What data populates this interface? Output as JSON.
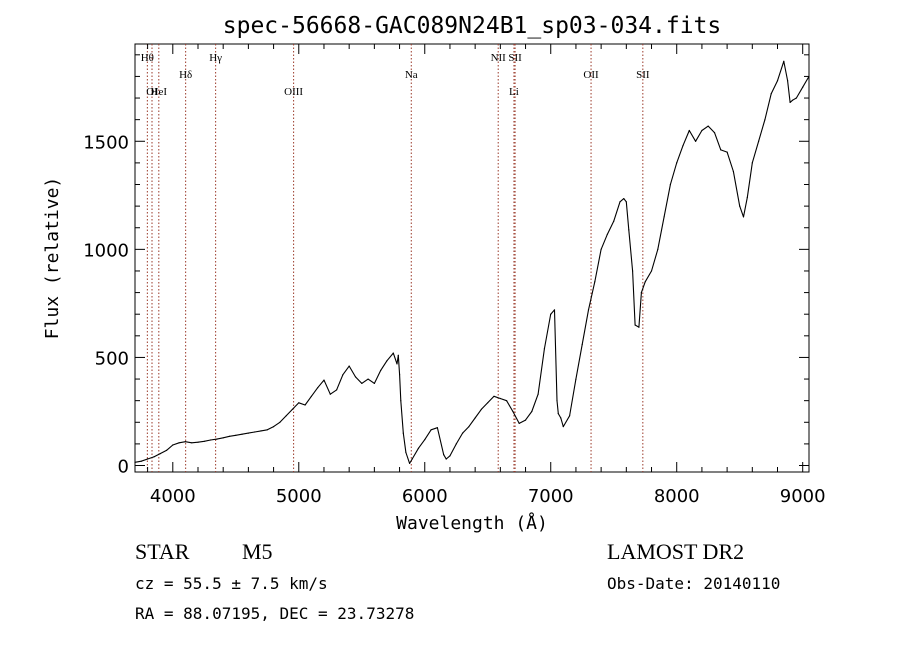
{
  "chart_data": {
    "type": "line",
    "title": "spec-56668-GAC089N24B1_sp03-034.fits",
    "xlabel": "Wavelength (Å)",
    "ylabel": "Flux (relative)",
    "xlim": [
      3700,
      9050
    ],
    "ylim": [
      -30,
      1950
    ],
    "xticks": [
      4000,
      5000,
      6000,
      7000,
      8000,
      9000
    ],
    "yticks": [
      0,
      500,
      1000,
      1500
    ],
    "grid": false,
    "series": [
      {
        "color": "#000000",
        "x": [
          3700,
          3750,
          3800,
          3850,
          3900,
          3950,
          4000,
          4050,
          4100,
          4150,
          4200,
          4250,
          4300,
          4350,
          4400,
          4450,
          4500,
          4550,
          4600,
          4650,
          4700,
          4750,
          4800,
          4850,
          4900,
          4950,
          5000,
          5050,
          5100,
          5150,
          5200,
          5250,
          5300,
          5350,
          5400,
          5450,
          5500,
          5550,
          5600,
          5650,
          5700,
          5750,
          5780,
          5790,
          5800,
          5810,
          5830,
          5850,
          5880,
          5900,
          5950,
          6000,
          6050,
          6100,
          6150,
          6170,
          6200,
          6250,
          6300,
          6350,
          6400,
          6450,
          6500,
          6550,
          6600,
          6650,
          6700,
          6750,
          6800,
          6850,
          6900,
          6950,
          7000,
          7030,
          7050,
          7060,
          7080,
          7100,
          7150,
          7200,
          7250,
          7300,
          7350,
          7400,
          7450,
          7500,
          7550,
          7580,
          7600,
          7620,
          7650,
          7670,
          7700,
          7720,
          7750,
          7800,
          7850,
          7900,
          7950,
          8000,
          8050,
          8100,
          8150,
          8200,
          8250,
          8300,
          8350,
          8400,
          8450,
          8500,
          8530,
          8560,
          8600,
          8650,
          8700,
          8750,
          8800,
          8850,
          8880,
          8900,
          8920,
          8950,
          9000,
          9050
        ],
        "values": [
          15,
          20,
          30,
          40,
          55,
          70,
          95,
          105,
          110,
          105,
          108,
          112,
          118,
          122,
          128,
          135,
          140,
          145,
          150,
          155,
          160,
          165,
          180,
          200,
          230,
          260,
          290,
          280,
          320,
          360,
          395,
          330,
          350,
          420,
          460,
          410,
          380,
          400,
          380,
          440,
          485,
          520,
          470,
          510,
          420,
          300,
          150,
          60,
          10,
          30,
          80,
          120,
          165,
          175,
          50,
          30,
          45,
          100,
          150,
          180,
          220,
          260,
          290,
          320,
          310,
          300,
          250,
          195,
          210,
          250,
          330,
          540,
          700,
          720,
          300,
          240,
          220,
          180,
          230,
          400,
          560,
          720,
          850,
          1000,
          1070,
          1130,
          1220,
          1235,
          1220,
          1090,
          900,
          650,
          640,
          800,
          850,
          900,
          1000,
          1150,
          1300,
          1400,
          1480,
          1550,
          1500,
          1550,
          1570,
          1540,
          1460,
          1450,
          1360,
          1200,
          1150,
          1240,
          1400,
          1500,
          1600,
          1720,
          1780,
          1870,
          1780,
          1680,
          1690,
          1700,
          1750,
          1800
        ]
      }
    ],
    "line_markers": [
      {
        "label": "Hθ",
        "x": 3798,
        "row": 0
      },
      {
        "label": "OI",
        "x": 3835,
        "row": 1
      },
      {
        "label": "HeI",
        "x": 3889,
        "row": 1
      },
      {
        "label": "Hδ",
        "x": 4102,
        "row": 0.5
      },
      {
        "label": "Hγ",
        "x": 4340,
        "row": 0
      },
      {
        "label": "OIII",
        "x": 4959,
        "row": 1
      },
      {
        "label": "Na",
        "x": 5893,
        "row": 0.5
      },
      {
        "label": "NII",
        "x": 6583,
        "row": 0
      },
      {
        "label": "SII",
        "x": 6717,
        "row": 0
      },
      {
        "label": "Li",
        "x": 6708,
        "row": 1
      },
      {
        "label": "OII",
        "x": 7320,
        "row": 0.5
      },
      {
        "label": "SII",
        "x": 7731,
        "row": 0.5
      }
    ]
  },
  "info": {
    "class": "STAR",
    "subclass": "M5",
    "survey": "LAMOST DR2",
    "cz": "cz = 55.5 ± 7.5 km/s",
    "obs_date": "Obs-Date: 20140110",
    "coords": "RA =  88.07195, DEC =  23.73278"
  }
}
